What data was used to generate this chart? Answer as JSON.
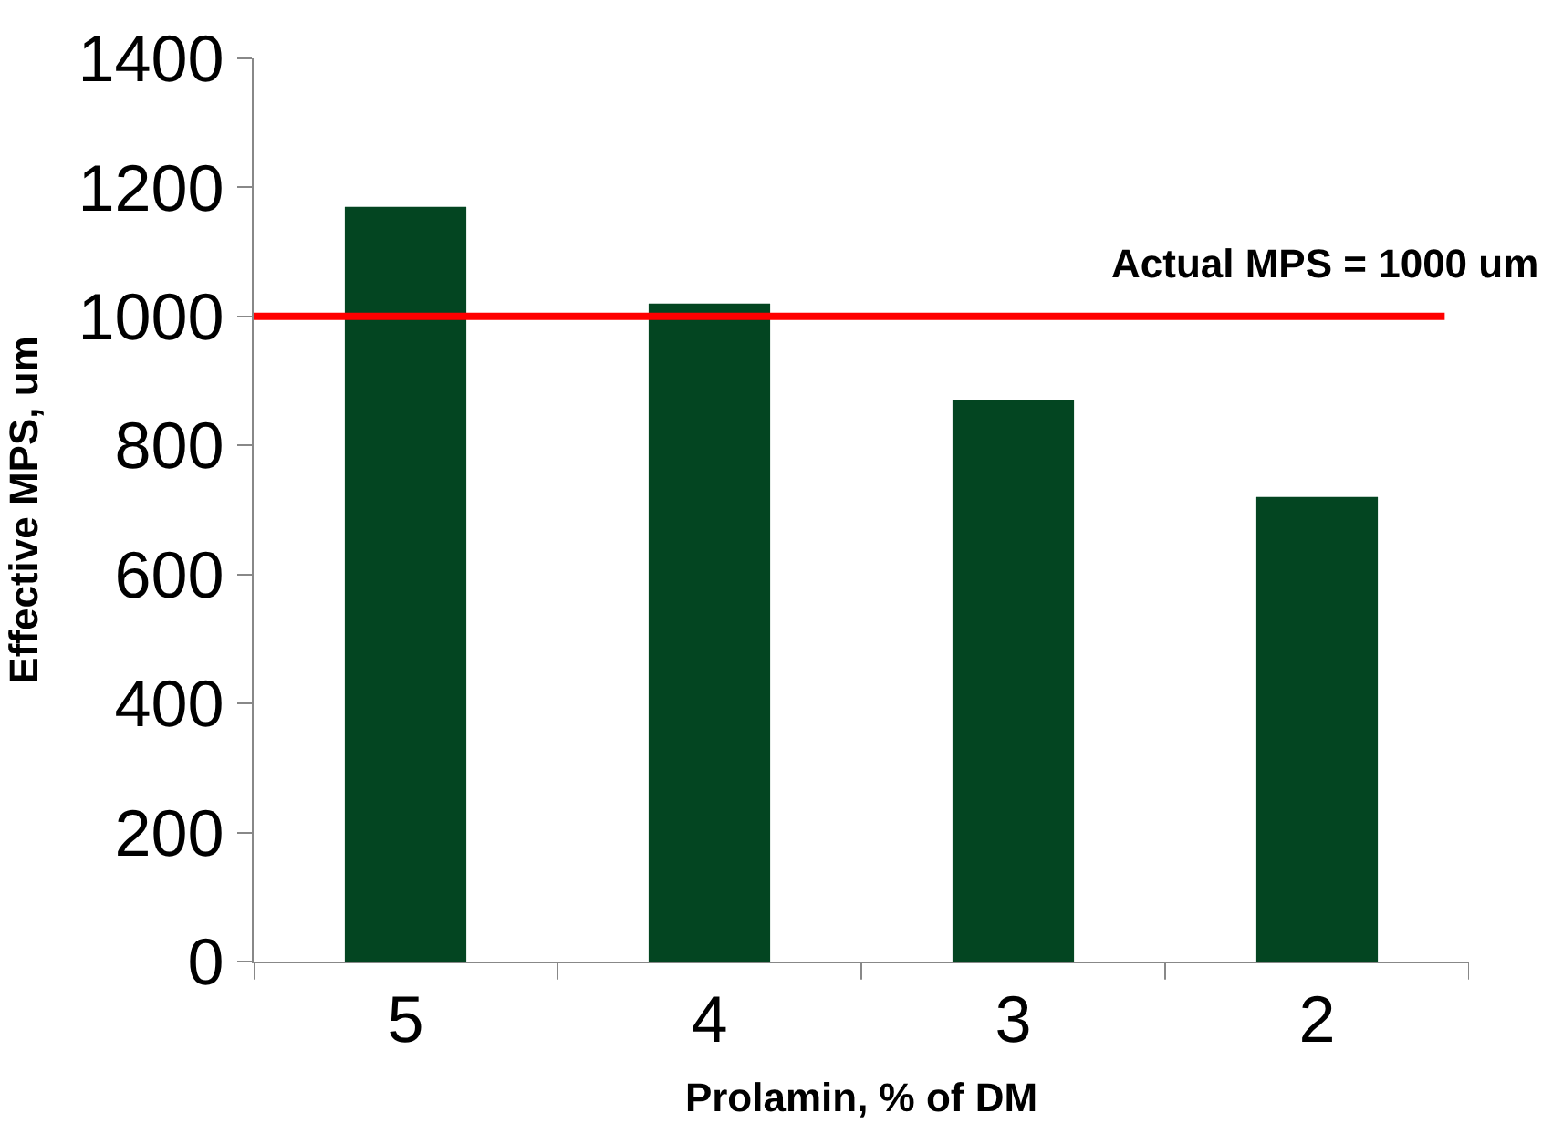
{
  "chart_data": {
    "type": "bar",
    "xlabel": "Prolamin, % of DM",
    "ylabel": "Effective MPS, um",
    "categories": [
      "5",
      "4",
      "3",
      "2"
    ],
    "values": [
      1170,
      1020,
      870,
      720
    ],
    "color": "#034521",
    "ylim": [
      0,
      1400
    ],
    "yticks": [
      0,
      200,
      400,
      600,
      800,
      1000,
      1200,
      1400
    ],
    "ref_lines": [
      {
        "axis": "y",
        "value": 1000,
        "label": "Actual MPS = 1000 um",
        "color": "#ff0000"
      }
    ]
  }
}
